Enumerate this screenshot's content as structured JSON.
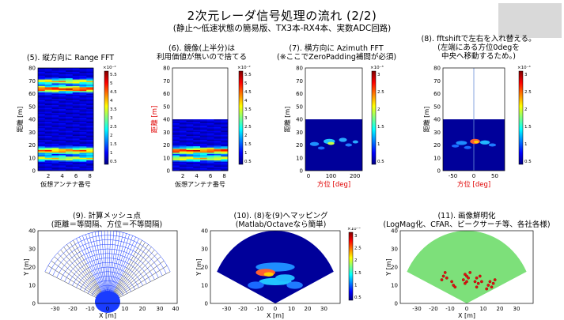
{
  "slide": {
    "title": "2次元レーダ信号処理の流れ (2/2)",
    "subtitle": "(静止〜低速状態の簡易版、TX3本-RX4本、実数ADC回路)"
  },
  "panels_top": [
    {
      "caption1": "(5). 縦方向に Range FFT",
      "caption2": "",
      "exp": "×10⁻²",
      "ylabel": "距離 [m]",
      "xlabel": "仮想アンテナ番号",
      "yticks": [
        "0",
        "10",
        "20",
        "30",
        "40",
        "50",
        "60",
        "70",
        "80"
      ],
      "xticks": [
        "2",
        "4",
        "6",
        "8"
      ],
      "cticks": [
        "5.5",
        "5",
        "4.5",
        "4",
        "3.5",
        "3",
        "2.5",
        "2",
        "1.5",
        "1",
        "0.5"
      ]
    },
    {
      "caption1": "(6). 鏡像(上半分)は",
      "caption2": "利用価値が無いので捨てる",
      "exp": "×10⁻²",
      "ylabel": "距離 [m]",
      "xlabel": "仮想アンテナ番号",
      "yticks": [
        "0",
        "10",
        "20",
        "30",
        "40",
        "50",
        "60",
        "70",
        "80"
      ],
      "xticks": [
        "2",
        "4",
        "6",
        "8"
      ],
      "cticks": [
        "5.5",
        "5",
        "4.5",
        "4",
        "3.5",
        "3",
        "2.5",
        "2",
        "1.5",
        "1",
        "0.5"
      ]
    },
    {
      "caption1": "(7). 横方向に Azimuth FFT",
      "caption2": "(※ここでZeroPadding補間が必須)",
      "exp": "×10⁻³",
      "ylabel": "距離 [m]",
      "xlabel": "方位 [deg]",
      "yticks": [
        "0",
        "10",
        "20",
        "30",
        "40",
        "50",
        "60",
        "70",
        "80"
      ],
      "xticks": [
        "0",
        "100",
        "200"
      ],
      "cticks": [
        "3",
        "2.5",
        "2",
        "1.5",
        "1",
        "0.5"
      ]
    },
    {
      "caption1": "(8). fftshiftで左右を入れ替える。",
      "caption2": "(左端にある方位0degを",
      "caption3": "中央へ移動するため。)",
      "exp": "×10⁻⁴",
      "ylabel": "距離 [m]",
      "xlabel": "方位 [deg]",
      "yticks": [
        "0",
        "10",
        "20",
        "30",
        "40",
        "50",
        "60",
        "70",
        "80"
      ],
      "xticks": [
        "-50",
        "0",
        "50"
      ],
      "cticks": [
        "3",
        "2.5",
        "2",
        "1.5",
        "1",
        "0.5"
      ]
    }
  ],
  "panels_bottom": [
    {
      "caption1": "(9). 計算メッシュ点",
      "caption2": "(距離＝等間隔、方位＝不等間隔)",
      "ylabel": "Y [m]",
      "xlabel": "X [m]",
      "yticks": [
        "0",
        "10",
        "20",
        "30",
        "40"
      ],
      "xticks": [
        "-30",
        "-20",
        "-10",
        "0",
        "10",
        "20",
        "30",
        "40"
      ]
    },
    {
      "caption1": "(10). (8)を(9)へマッピング",
      "caption2": "(Matlab/Octaveなら簡単)",
      "exp": "×10⁻⁴",
      "ylabel": "Y [m]",
      "xlabel": "X [m]",
      "yticks": [
        "0",
        "10",
        "20",
        "30",
        "40"
      ],
      "xticks": [
        "-30",
        "-20",
        "-10",
        "0",
        "10",
        "20",
        "30"
      ],
      "cticks": [
        "3",
        "2.5",
        "2",
        "1.5",
        "1",
        "0.5"
      ]
    },
    {
      "caption1": "(11). 画像鮮明化",
      "caption2": "(LogMag化、CFAR、ピークサーチ等、各社各様)",
      "ylabel": "Y [m]",
      "xlabel": "X [m]",
      "yticks": [
        "0",
        "10",
        "20",
        "30",
        "40"
      ],
      "xticks": [
        "-30",
        "-20",
        "-10",
        "0",
        "10",
        "20",
        "30"
      ]
    }
  ]
}
